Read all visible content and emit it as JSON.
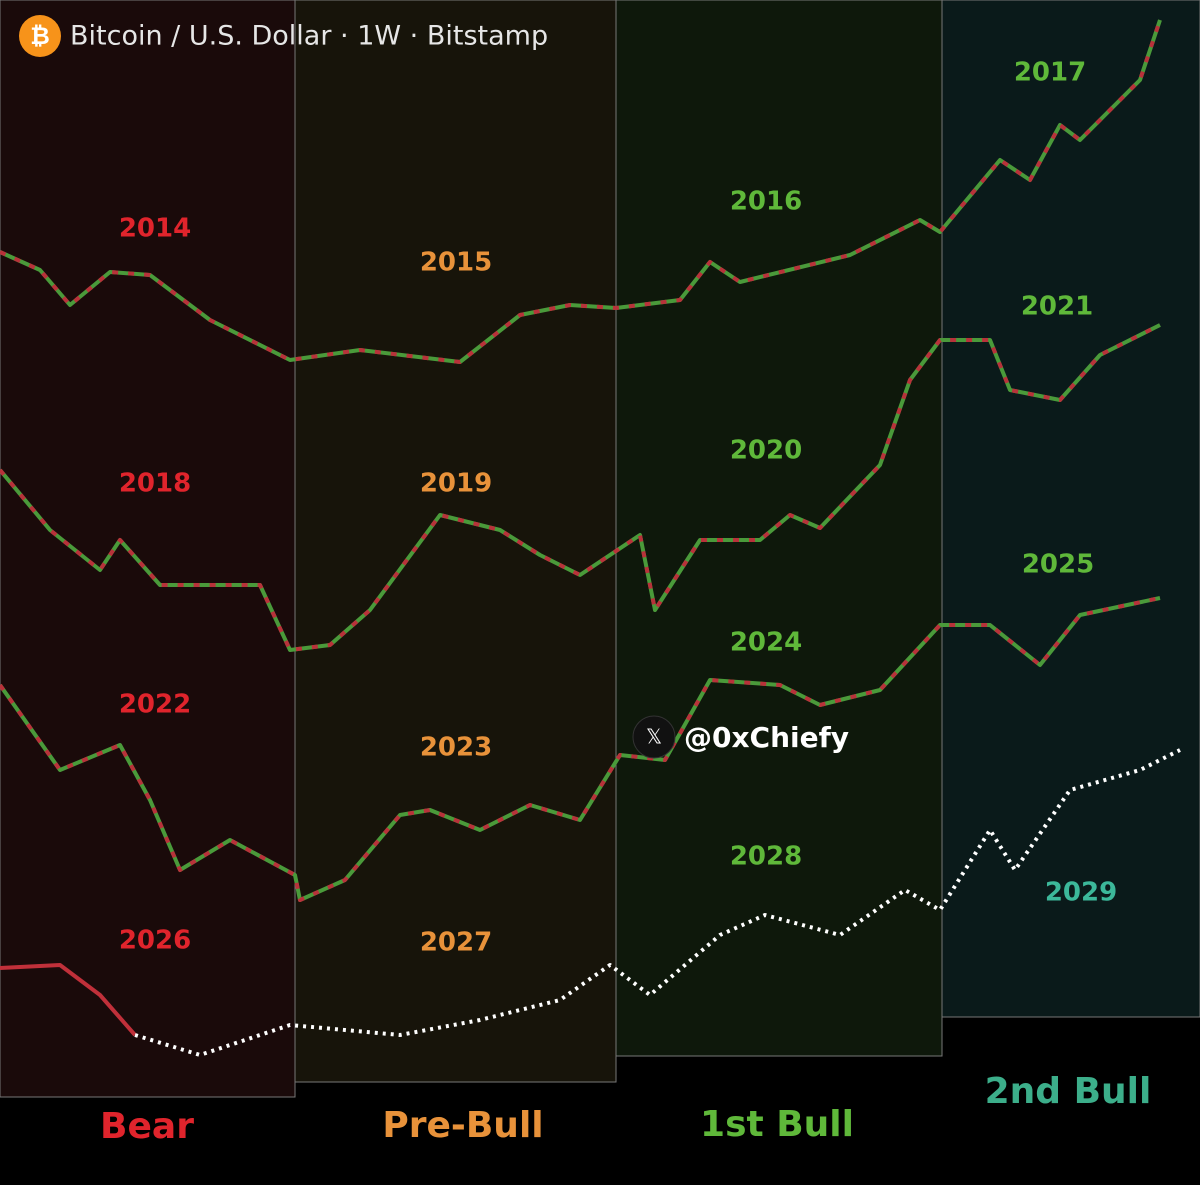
{
  "header": {
    "title": "Bitcoin / U.S. Dollar · 1W · Bitstamp"
  },
  "phases": [
    "Bear",
    "Pre-Bull",
    "1st Bull",
    "2nd Bull"
  ],
  "years": {
    "row1": [
      "2014",
      "2015",
      "2016",
      "2017"
    ],
    "row2": [
      "2018",
      "2019",
      "2020",
      "2021"
    ],
    "row3": [
      "2022",
      "2023",
      "2024",
      "2025"
    ],
    "row4": [
      "2026",
      "2027",
      "2028",
      "2029"
    ]
  },
  "watermark": {
    "icon": "𝕏",
    "handle": "@0xChiefy"
  }
}
